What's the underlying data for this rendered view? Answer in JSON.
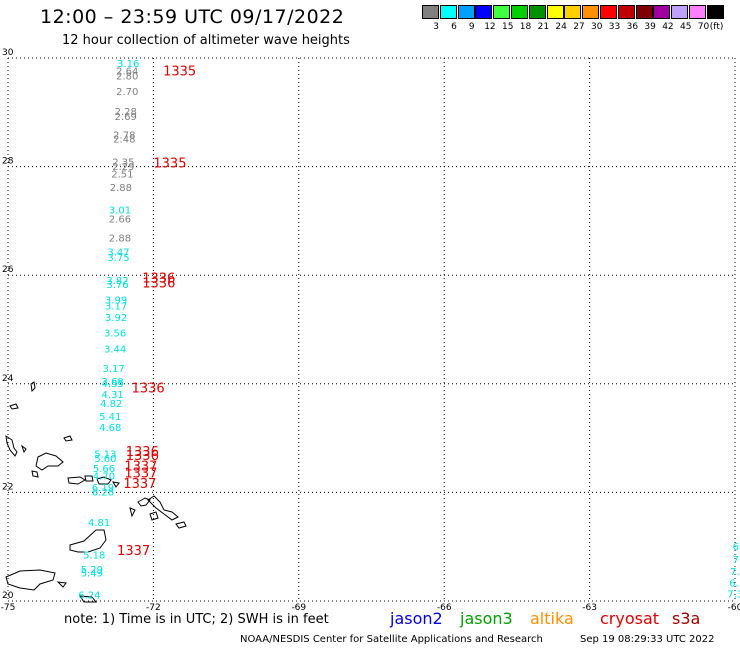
{
  "header": {
    "title": "12:00 – 23:59 UTC 09/17/2022",
    "subtitle": "12 hour collection of altimeter wave heights"
  },
  "legend": {
    "unit": "(ft)",
    "bins": [
      {
        "label": "3",
        "color": "#808080"
      },
      {
        "label": "6",
        "color": "#00ffff"
      },
      {
        "label": "9",
        "color": "#00a0ff"
      },
      {
        "label": "12",
        "color": "#0000ff"
      },
      {
        "label": "15",
        "color": "#40ff40"
      },
      {
        "label": "18",
        "color": "#00d000"
      },
      {
        "label": "21",
        "color": "#009000"
      },
      {
        "label": "24",
        "color": "#ffff00"
      },
      {
        "label": "27",
        "color": "#ffd000"
      },
      {
        "label": "30",
        "color": "#ff9000"
      },
      {
        "label": "33",
        "color": "#ff0000"
      },
      {
        "label": "36",
        "color": "#c00000"
      },
      {
        "label": "39",
        "color": "#800000"
      },
      {
        "label": "42",
        "color": "#a000a0"
      },
      {
        "label": "45",
        "color": "#c0a0ff"
      },
      {
        "label": "70",
        "color": "#ff80ff"
      },
      {
        "label": "",
        "color": "#000000"
      }
    ]
  },
  "map": {
    "lon_range": [
      -75,
      -60
    ],
    "lat_range": [
      20,
      30
    ],
    "lon_ticks": [
      "-75",
      "-72",
      "-69",
      "-66",
      "-63",
      "-60"
    ],
    "lat_ticks": [
      "30",
      "28",
      "26",
      "24",
      "22",
      "20"
    ],
    "colors": {
      "gray": "#808080",
      "cyan": "#00e0e0",
      "pass": "#e00000"
    },
    "wave_labels": [
      {
        "text": "3.16",
        "lat": 29.83,
        "lon": -72.75,
        "color": "cyan"
      },
      {
        "text": "2.64",
        "lat": 29.7,
        "lon": -72.77,
        "color": "gray"
      },
      {
        "text": "2.80",
        "lat": 29.6,
        "lon": -72.77,
        "color": "gray"
      },
      {
        "text": "2.70",
        "lat": 29.32,
        "lon": -72.77,
        "color": "gray"
      },
      {
        "text": "2.28",
        "lat": 28.95,
        "lon": -72.8,
        "color": "gray"
      },
      {
        "text": "2.69",
        "lat": 28.86,
        "lon": -72.8,
        "color": "gray"
      },
      {
        "text": "2.78",
        "lat": 28.52,
        "lon": -72.83,
        "color": "gray"
      },
      {
        "text": "2.48",
        "lat": 28.44,
        "lon": -72.83,
        "color": "gray"
      },
      {
        "text": "2.35",
        "lat": 28.02,
        "lon": -72.85,
        "color": "gray"
      },
      {
        "text": "2.29",
        "lat": 27.94,
        "lon": -72.85,
        "color": "gray"
      },
      {
        "text": "2.51",
        "lat": 27.8,
        "lon": -72.87,
        "color": "gray"
      },
      {
        "text": "2.88",
        "lat": 27.55,
        "lon": -72.9,
        "color": "gray"
      },
      {
        "text": "3.01",
        "lat": 27.14,
        "lon": -72.92,
        "color": "cyan"
      },
      {
        "text": "2.66",
        "lat": 26.97,
        "lon": -72.92,
        "color": "gray"
      },
      {
        "text": "2.88",
        "lat": 26.62,
        "lon": -72.92,
        "color": "gray"
      },
      {
        "text": "3.47",
        "lat": 26.36,
        "lon": -72.95,
        "color": "cyan"
      },
      {
        "text": "3.75",
        "lat": 26.26,
        "lon": -72.95,
        "color": "cyan"
      },
      {
        "text": "3.82",
        "lat": 25.84,
        "lon": -72.97,
        "color": "cyan"
      },
      {
        "text": "3.76",
        "lat": 25.76,
        "lon": -72.97,
        "color": "cyan"
      },
      {
        "text": "3.99",
        "lat": 25.48,
        "lon": -73.0,
        "color": "cyan"
      },
      {
        "text": "3.17",
        "lat": 25.37,
        "lon": -73.0,
        "color": "cyan"
      },
      {
        "text": "3.92",
        "lat": 25.16,
        "lon": -73.0,
        "color": "cyan"
      },
      {
        "text": "3.56",
        "lat": 24.87,
        "lon": -73.02,
        "color": "cyan"
      },
      {
        "text": "3.44",
        "lat": 24.58,
        "lon": -73.02,
        "color": "cyan"
      },
      {
        "text": "3.17",
        "lat": 24.22,
        "lon": -73.05,
        "color": "cyan"
      },
      {
        "text": "3.68",
        "lat": 23.98,
        "lon": -73.07,
        "color": "cyan"
      },
      {
        "text": "4.55",
        "lat": 23.94,
        "lon": -73.07,
        "color": "cyan"
      },
      {
        "text": "4.31",
        "lat": 23.74,
        "lon": -73.07,
        "color": "cyan"
      },
      {
        "text": "4.82",
        "lat": 23.57,
        "lon": -73.1,
        "color": "cyan"
      },
      {
        "text": "5.41",
        "lat": 23.33,
        "lon": -73.12,
        "color": "cyan"
      },
      {
        "text": "4.68",
        "lat": 23.13,
        "lon": -73.12,
        "color": "cyan"
      },
      {
        "text": "5.13",
        "lat": 22.64,
        "lon": -73.22,
        "color": "cyan"
      },
      {
        "text": "5.60",
        "lat": 22.56,
        "lon": -73.22,
        "color": "cyan"
      },
      {
        "text": "5.66",
        "lat": 22.38,
        "lon": -73.25,
        "color": "cyan"
      },
      {
        "text": "4.70",
        "lat": 22.24,
        "lon": -73.25,
        "color": "cyan"
      },
      {
        "text": "6.19",
        "lat": 22.03,
        "lon": -73.27,
        "color": "cyan"
      },
      {
        "text": "6.28",
        "lat": 21.94,
        "lon": -73.27,
        "color": "cyan"
      },
      {
        "text": "4.81",
        "lat": 21.38,
        "lon": -73.35,
        "color": "cyan"
      },
      {
        "text": "5.18",
        "lat": 20.78,
        "lon": -73.45,
        "color": "cyan"
      },
      {
        "text": "5.29",
        "lat": 20.52,
        "lon": -73.5,
        "color": "cyan"
      },
      {
        "text": "5.49",
        "lat": 20.45,
        "lon": -73.5,
        "color": "cyan"
      },
      {
        "text": "6.24",
        "lat": 20.05,
        "lon": -73.55,
        "color": "cyan"
      },
      {
        "text": "6",
        "lat": 20.94,
        "lon": -60.05,
        "color": "cyan"
      },
      {
        "text": "7",
        "lat": 20.7,
        "lon": -60.05,
        "color": "cyan"
      },
      {
        "text": "7.",
        "lat": 20.48,
        "lon": -60.1,
        "color": "cyan"
      },
      {
        "text": "6.",
        "lat": 20.27,
        "lon": -60.12,
        "color": "cyan"
      },
      {
        "text": "7.3",
        "lat": 20.06,
        "lon": -60.16,
        "color": "cyan"
      }
    ],
    "pass_labels": [
      {
        "text": "1335",
        "lat": 29.68,
        "lon": -71.8
      },
      {
        "text": "1335",
        "lat": 27.98,
        "lon": -72.0
      },
      {
        "text": "1336",
        "lat": 25.87,
        "lon": -72.23
      },
      {
        "text": "1336",
        "lat": 25.77,
        "lon": -72.23
      },
      {
        "text": "1336",
        "lat": 23.84,
        "lon": -72.45
      },
      {
        "text": "1336",
        "lat": 22.67,
        "lon": -72.57
      },
      {
        "text": "1336",
        "lat": 22.6,
        "lon": -72.57
      },
      {
        "text": "1337",
        "lat": 22.4,
        "lon": -72.6
      },
      {
        "text": "1337",
        "lat": 22.27,
        "lon": -72.6
      },
      {
        "text": "1337",
        "lat": 22.08,
        "lon": -72.62
      },
      {
        "text": "1337",
        "lat": 20.85,
        "lon": -72.75
      }
    ]
  },
  "footer": {
    "note": "note: 1) Time is in UTC; 2) SWH is in feet",
    "satellites": [
      {
        "name": "jason2",
        "color": "#0000e0"
      },
      {
        "name": "jason3",
        "color": "#00a000"
      },
      {
        "name": "altika",
        "color": "#ff9000"
      },
      {
        "name": "cryosat",
        "color": "#e00000"
      },
      {
        "name": "s3a",
        "color": "#a00000"
      }
    ],
    "credit": "NOAA/NESDIS Center for Satellite Applications and Research",
    "timestamp": "Sep 19 08:29:33 UTC 2022"
  }
}
